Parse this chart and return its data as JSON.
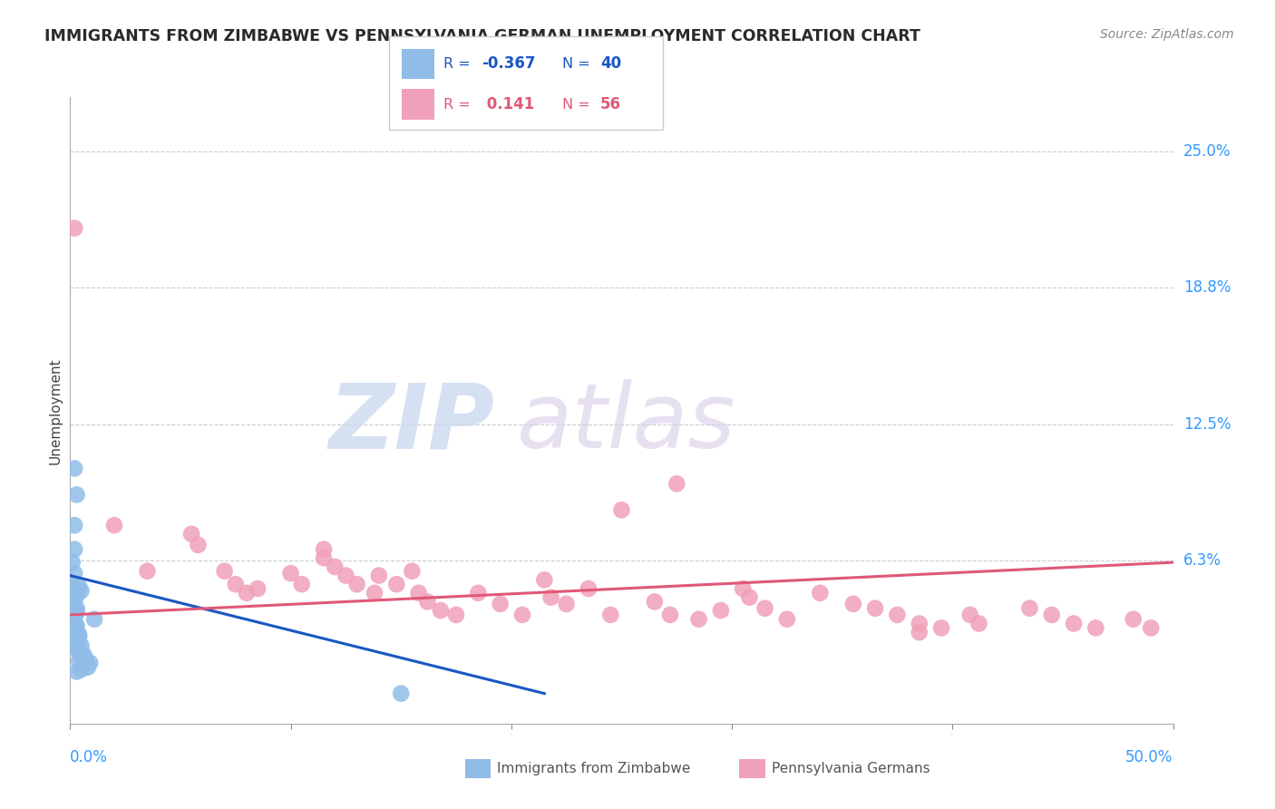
{
  "title": "IMMIGRANTS FROM ZIMBABWE VS PENNSYLVANIA GERMAN UNEMPLOYMENT CORRELATION CHART",
  "source": "Source: ZipAtlas.com",
  "ylabel": "Unemployment",
  "color_blue": "#90bce8",
  "color_pink": "#f0a0b8",
  "color_blue_line": "#1a56c4",
  "color_pink_line": "#e05878",
  "color_axis": "#3399ff",
  "ytick_labels": [
    "25.0%",
    "18.8%",
    "12.5%",
    "6.3%"
  ],
  "ytick_values": [
    0.25,
    0.188,
    0.125,
    0.063
  ],
  "xmin": 0.0,
  "xmax": 0.5,
  "ymin": -0.012,
  "ymax": 0.275,
  "scatter_blue": [
    [
      0.002,
      0.105
    ],
    [
      0.003,
      0.093
    ],
    [
      0.002,
      0.079
    ],
    [
      0.002,
      0.068
    ],
    [
      0.001,
      0.062
    ],
    [
      0.002,
      0.057
    ],
    [
      0.001,
      0.052
    ],
    [
      0.002,
      0.049
    ],
    [
      0.003,
      0.047
    ],
    [
      0.002,
      0.045
    ],
    [
      0.001,
      0.043
    ],
    [
      0.003,
      0.041
    ],
    [
      0.003,
      0.039
    ],
    [
      0.002,
      0.037
    ],
    [
      0.001,
      0.036
    ],
    [
      0.002,
      0.034
    ],
    [
      0.003,
      0.033
    ],
    [
      0.001,
      0.032
    ],
    [
      0.002,
      0.031
    ],
    [
      0.003,
      0.03
    ],
    [
      0.004,
      0.029
    ],
    [
      0.004,
      0.028
    ],
    [
      0.002,
      0.027
    ],
    [
      0.001,
      0.026
    ],
    [
      0.003,
      0.025
    ],
    [
      0.005,
      0.024
    ],
    [
      0.002,
      0.023
    ],
    [
      0.004,
      0.021
    ],
    [
      0.006,
      0.02
    ],
    [
      0.005,
      0.019
    ],
    [
      0.007,
      0.018
    ],
    [
      0.004,
      0.017
    ],
    [
      0.009,
      0.016
    ],
    [
      0.011,
      0.036
    ],
    [
      0.004,
      0.051
    ],
    [
      0.005,
      0.049
    ],
    [
      0.008,
      0.014
    ],
    [
      0.005,
      0.013
    ],
    [
      0.003,
      0.012
    ],
    [
      0.15,
      0.002
    ]
  ],
  "scatter_pink": [
    [
      0.002,
      0.215
    ],
    [
      0.02,
      0.079
    ],
    [
      0.035,
      0.058
    ],
    [
      0.055,
      0.075
    ],
    [
      0.058,
      0.07
    ],
    [
      0.07,
      0.058
    ],
    [
      0.075,
      0.052
    ],
    [
      0.08,
      0.048
    ],
    [
      0.085,
      0.05
    ],
    [
      0.1,
      0.057
    ],
    [
      0.105,
      0.052
    ],
    [
      0.115,
      0.068
    ],
    [
      0.115,
      0.064
    ],
    [
      0.12,
      0.06
    ],
    [
      0.125,
      0.056
    ],
    [
      0.13,
      0.052
    ],
    [
      0.138,
      0.048
    ],
    [
      0.14,
      0.056
    ],
    [
      0.148,
      0.052
    ],
    [
      0.155,
      0.058
    ],
    [
      0.158,
      0.048
    ],
    [
      0.162,
      0.044
    ],
    [
      0.168,
      0.04
    ],
    [
      0.175,
      0.038
    ],
    [
      0.185,
      0.048
    ],
    [
      0.195,
      0.043
    ],
    [
      0.205,
      0.038
    ],
    [
      0.215,
      0.054
    ],
    [
      0.218,
      0.046
    ],
    [
      0.225,
      0.043
    ],
    [
      0.235,
      0.05
    ],
    [
      0.245,
      0.038
    ],
    [
      0.265,
      0.044
    ],
    [
      0.272,
      0.038
    ],
    [
      0.285,
      0.036
    ],
    [
      0.295,
      0.04
    ],
    [
      0.305,
      0.05
    ],
    [
      0.308,
      0.046
    ],
    [
      0.315,
      0.041
    ],
    [
      0.325,
      0.036
    ],
    [
      0.34,
      0.048
    ],
    [
      0.355,
      0.043
    ],
    [
      0.365,
      0.041
    ],
    [
      0.375,
      0.038
    ],
    [
      0.385,
      0.034
    ],
    [
      0.395,
      0.032
    ],
    [
      0.408,
      0.038
    ],
    [
      0.412,
      0.034
    ],
    [
      0.435,
      0.041
    ],
    [
      0.445,
      0.038
    ],
    [
      0.455,
      0.034
    ],
    [
      0.465,
      0.032
    ],
    [
      0.482,
      0.036
    ],
    [
      0.25,
      0.086
    ],
    [
      0.275,
      0.098
    ],
    [
      0.385,
      0.03
    ],
    [
      0.49,
      0.032
    ]
  ],
  "blue_line_x": [
    0.0,
    0.215
  ],
  "blue_line_y": [
    0.056,
    0.002
  ],
  "pink_line_x": [
    0.0,
    0.5
  ],
  "pink_line_y": [
    0.038,
    0.062
  ],
  "watermark_zip": "ZIP",
  "watermark_atlas": "atlas",
  "background_color": "#ffffff"
}
